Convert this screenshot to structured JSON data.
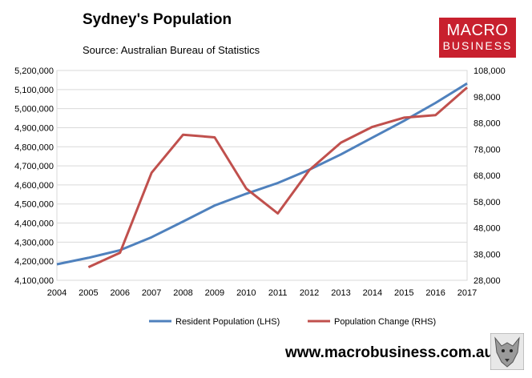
{
  "header": {
    "title": "Sydney's Population",
    "subtitle": "Source: Australian Bureau of Statistics"
  },
  "logo": {
    "line1": "MACRO",
    "line2": "BUSINESS",
    "color": "#c8202e"
  },
  "footer": {
    "url": "www.macrobusiness.com.au",
    "mascot_icon": "wolf-icon"
  },
  "chart_data": {
    "type": "line",
    "title": "Sydney's Population",
    "subtitle": "Source: Australian Bureau of Statistics",
    "x": [
      "2004",
      "2005",
      "2006",
      "2007",
      "2008",
      "2009",
      "2010",
      "2011",
      "2012",
      "2013",
      "2014",
      "2015",
      "2016",
      "2017"
    ],
    "y_left_ticks": [
      "4,100,000",
      "4,200,000",
      "4,300,000",
      "4,400,000",
      "4,500,000",
      "4,600,000",
      "4,700,000",
      "4,800,000",
      "4,900,000",
      "5,000,000",
      "5,100,000",
      "5,200,000"
    ],
    "y_right_ticks": [
      "28,000",
      "38,000",
      "48,000",
      "58,000",
      "68,000",
      "78,000",
      "88,000",
      "98,000",
      "108,000"
    ],
    "y_left_range": [
      4100000,
      5200000
    ],
    "y_right_range": [
      28000,
      108000
    ],
    "grid": "horizontal",
    "legend_position": "bottom",
    "series": [
      {
        "name": "Resident Population (LHS)",
        "axis": "left",
        "color": "#4f81bd",
        "values": [
          4184000,
          4218000,
          4258000,
          4326000,
          4408000,
          4492000,
          4554000,
          4610000,
          4680000,
          4760000,
          4848000,
          4936000,
          5030000,
          5132000
        ]
      },
      {
        "name": "Population Change (RHS)",
        "axis": "right",
        "color": "#c0504d",
        "values": [
          null,
          33000,
          38500,
          69000,
          83500,
          82500,
          63000,
          53500,
          70000,
          80500,
          86500,
          90000,
          91000,
          101500
        ]
      }
    ]
  }
}
